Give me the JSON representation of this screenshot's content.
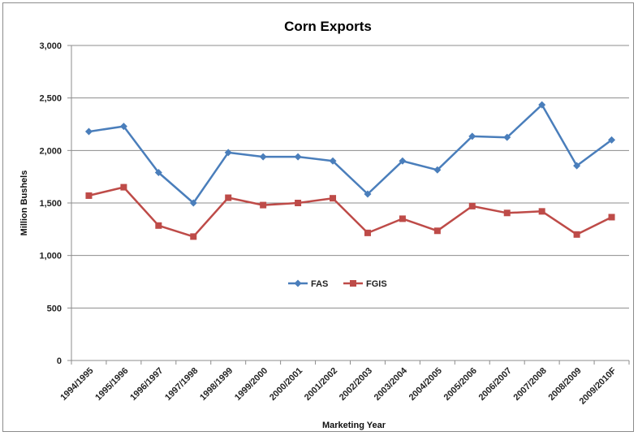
{
  "chart_data": {
    "type": "line",
    "title": "Corn Exports",
    "xlabel": "Marketing Year",
    "ylabel": "Million Bushels",
    "ylim": [
      0,
      3000
    ],
    "yticks": [
      "0",
      "500",
      "1,000",
      "1,500",
      "2,000",
      "2,500",
      "3,000"
    ],
    "ytick_values": [
      0,
      500,
      1000,
      1500,
      2000,
      2500,
      3000
    ],
    "grid": true,
    "legend_position": "center",
    "categories": [
      "1994/1995",
      "1995/1996",
      "1996/1997",
      "1997/1998",
      "1998/1999",
      "1999/2000",
      "2000/2001",
      "2001/2002",
      "2002/2003",
      "2003/2004",
      "2004/2005",
      "2005/2006",
      "2006/2007",
      "2007/2008",
      "2008/2009",
      "2009/2010F"
    ],
    "series": [
      {
        "name": "FAS",
        "color": "#4a7ebb",
        "marker": "diamond",
        "values": [
          2180,
          2230,
          1790,
          1500,
          1980,
          1940,
          1940,
          1900,
          1585,
          1900,
          1815,
          2135,
          2125,
          2435,
          1855,
          2100
        ]
      },
      {
        "name": "FGIS",
        "color": "#be4b48",
        "marker": "square",
        "values": [
          1570,
          1650,
          1285,
          1180,
          1550,
          1480,
          1500,
          1545,
          1215,
          1350,
          1235,
          1470,
          1405,
          1420,
          1200,
          1365
        ]
      }
    ]
  }
}
